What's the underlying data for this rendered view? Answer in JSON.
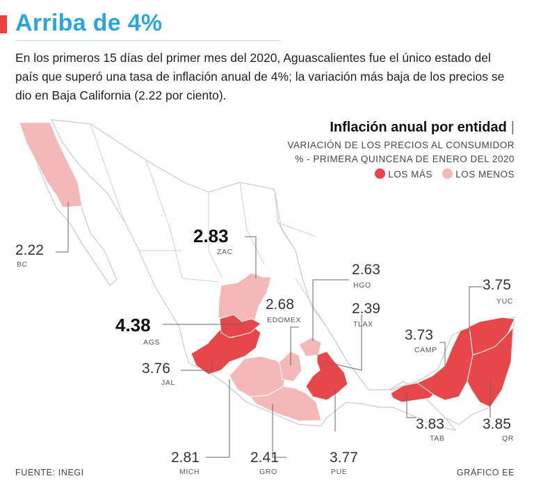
{
  "header": {
    "title": "Arriba de 4%",
    "lead": "En los primeros 15 días del primer mes del 2020, Aguascalientes fue el único estado del país que superó una tasa de inflación anual de 4%; la variación más baja de los precios se dio en Baja California (2.22 por ciento)."
  },
  "legend": {
    "title": "Inflación anual por entidad",
    "separator": "|",
    "subtitle_line1": "VARIACIÓN DE LOS PRECIOS AL CONSUMIDOR",
    "subtitle_line2": "% - PRIMERA QUINCENA DE ENERO DEL 2020",
    "high_label": "LOS MÁS",
    "low_label": "LOS MENOS"
  },
  "colors": {
    "accent": "#e8423f",
    "title": "#2aa6dc",
    "high": "#e8474a",
    "low": "#f4b8b8",
    "base": "#ffffff",
    "border": "#c9c9c9"
  },
  "states": {
    "bc": {
      "value": "2.22",
      "code": "BC",
      "group": "low"
    },
    "zac": {
      "value": "2.83",
      "code": "ZAC",
      "group": "low"
    },
    "ags": {
      "value": "4.38",
      "code": "AGS",
      "group": "high"
    },
    "jal": {
      "value": "3.76",
      "code": "JAL",
      "group": "high"
    },
    "mich": {
      "value": "2.81",
      "code": "MICH",
      "group": "low"
    },
    "gro": {
      "value": "2.41",
      "code": "GRO",
      "group": "low"
    },
    "pue": {
      "value": "3.77",
      "code": "PUE",
      "group": "high"
    },
    "edomex": {
      "value": "2.68",
      "code": "EDOMEX",
      "group": "low"
    },
    "hgo": {
      "value": "2.63",
      "code": "HGO",
      "group": "low"
    },
    "tlax": {
      "value": "2.39",
      "code": "TLAX",
      "group": "low"
    },
    "camp": {
      "value": "3.73",
      "code": "CAMP",
      "group": "high"
    },
    "yuc": {
      "value": "3.75",
      "code": "YUC",
      "group": "high"
    },
    "tab": {
      "value": "3.83",
      "code": "TAB",
      "group": "high"
    },
    "qr": {
      "value": "3.85",
      "code": "QR",
      "group": "high"
    }
  },
  "footer": {
    "source": "FUENTE: INEGI",
    "credit": "GRÁFICO EE"
  }
}
